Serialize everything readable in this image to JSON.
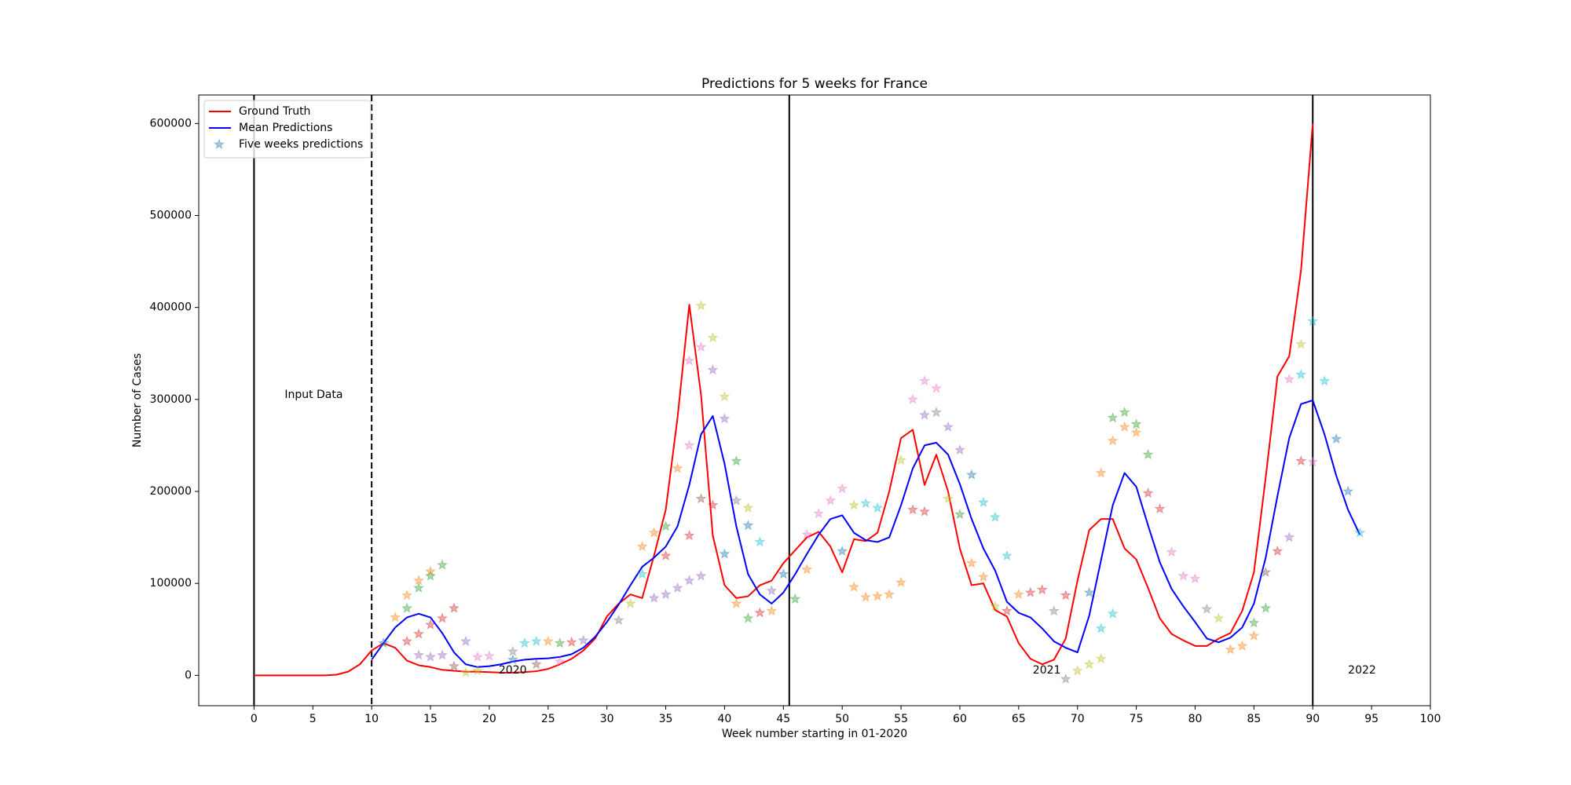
{
  "chart_data": {
    "type": "line",
    "title": "Predictions for 5 weeks for France",
    "xlabel": "Week number starting in 01-2020",
    "ylabel": "Number of Cases",
    "xlim": [
      -4.7,
      100
    ],
    "xticks": [
      0,
      5,
      10,
      15,
      20,
      25,
      30,
      35,
      40,
      45,
      50,
      55,
      60,
      65,
      70,
      75,
      80,
      85,
      90,
      95,
      100
    ],
    "ylim": [
      -33000,
      631000
    ],
    "yticks": [
      0,
      100000,
      200000,
      300000,
      400000,
      500000,
      600000
    ],
    "legend": "upper left",
    "series": [
      {
        "name": "Ground Truth",
        "color": "#ff0000",
        "x": [
          0,
          1,
          2,
          3,
          4,
          5,
          6,
          7,
          8,
          9,
          10,
          11,
          12,
          13,
          14,
          15,
          16,
          17,
          18,
          19,
          20,
          21,
          22,
          23,
          24,
          25,
          26,
          27,
          28,
          29,
          30,
          31,
          32,
          33,
          34,
          35,
          36,
          37,
          38,
          39,
          40,
          41,
          42,
          43,
          44,
          45,
          46,
          47,
          48,
          49,
          50,
          51,
          52,
          53,
          54,
          55,
          56,
          57,
          58,
          59,
          60,
          61,
          62,
          63,
          64,
          65,
          66,
          67,
          68,
          69,
          70,
          71,
          72,
          73,
          74,
          75,
          76,
          77,
          78,
          79,
          80,
          81,
          82,
          83,
          84,
          85,
          86,
          87,
          88,
          89,
          90
        ],
        "values": [
          0,
          0,
          0,
          0,
          0,
          0,
          0,
          700,
          4000,
          12000,
          27000,
          35000,
          30000,
          16000,
          11000,
          9000,
          6000,
          5000,
          4000,
          4000,
          3500,
          3000,
          3000,
          3500,
          4500,
          7000,
          12000,
          18000,
          27000,
          40000,
          64000,
          78000,
          88000,
          84000,
          130000,
          180000,
          280000,
          403000,
          305000,
          152000,
          98000,
          84000,
          86000,
          98000,
          103000,
          122000,
          136000,
          150000,
          156000,
          140000,
          112000,
          148000,
          146000,
          155000,
          200000,
          258000,
          267000,
          207000,
          240000,
          200000,
          138000,
          98000,
          100000,
          71000,
          64000,
          35000,
          18000,
          12000,
          17000,
          40000,
          103000,
          158000,
          170000,
          170000,
          138000,
          126000,
          95000,
          62000,
          45000,
          38000,
          32000,
          32000,
          40000,
          46000,
          70000,
          112000,
          215000,
          325000,
          347000,
          440000,
          600000
        ]
      },
      {
        "name": "Mean Predictions",
        "color": "#0000ff",
        "x": [
          10,
          11,
          12,
          13,
          14,
          15,
          16,
          17,
          18,
          19,
          20,
          21,
          22,
          23,
          24,
          25,
          26,
          27,
          28,
          29,
          30,
          31,
          32,
          33,
          34,
          35,
          36,
          37,
          38,
          39,
          40,
          41,
          42,
          43,
          44,
          45,
          46,
          47,
          48,
          49,
          50,
          51,
          52,
          53,
          54,
          55,
          56,
          57,
          58,
          59,
          60,
          61,
          62,
          63,
          64,
          65,
          66,
          67,
          68,
          69,
          70,
          71,
          72,
          73,
          74,
          75,
          76,
          77,
          78,
          79,
          80,
          81,
          82,
          83,
          84,
          85,
          86,
          87,
          88,
          89,
          90,
          91,
          92,
          93,
          94
        ],
        "values": [
          17000,
          35000,
          52000,
          63000,
          67000,
          63000,
          46000,
          25000,
          12000,
          9000,
          10000,
          12000,
          15000,
          17000,
          18000,
          18500,
          20000,
          23000,
          30000,
          42000,
          58000,
          77000,
          98000,
          118000,
          128000,
          140000,
          162000,
          207000,
          262000,
          282000,
          230000,
          162000,
          110000,
          88000,
          78000,
          90000,
          110000,
          132000,
          153000,
          170000,
          174000,
          155000,
          147000,
          145000,
          150000,
          185000,
          225000,
          250000,
          253000,
          240000,
          208000,
          170000,
          138000,
          114000,
          80000,
          68000,
          63000,
          51000,
          37000,
          30000,
          25000,
          65000,
          125000,
          185000,
          220000,
          205000,
          163000,
          123000,
          94000,
          75000,
          58000,
          40000,
          36000,
          41000,
          52000,
          78000,
          128000,
          195000,
          258000,
          295000,
          299000,
          262000,
          217000,
          180000,
          153000
        ]
      },
      {
        "name": "Five weeks predictions",
        "type": "scatter",
        "marker": "star",
        "color": "#1f77b4",
        "alpha": 0.4,
        "x": [
          11,
          12,
          13,
          13,
          14,
          14,
          15,
          15,
          16,
          13,
          14,
          15,
          16,
          17,
          14,
          15,
          16,
          18,
          17,
          19,
          20,
          18,
          19,
          22,
          23,
          24,
          25,
          26,
          27,
          28,
          22,
          24,
          26,
          31,
          32,
          33,
          33,
          34,
          35,
          35,
          34,
          35,
          36,
          36,
          37,
          37,
          38,
          38,
          39,
          39,
          37,
          37,
          38,
          38,
          39,
          40,
          40,
          40,
          41,
          41,
          42,
          42,
          43,
          41,
          42,
          43,
          44,
          44,
          45,
          46,
          47,
          47,
          48,
          49,
          50,
          50,
          51,
          51,
          52,
          52,
          53,
          53,
          54,
          55,
          55,
          56,
          57,
          56,
          57,
          58,
          57,
          58,
          59,
          60,
          59,
          60,
          61,
          62,
          63,
          64,
          61,
          62,
          63,
          64,
          65,
          66,
          67,
          68,
          69,
          69,
          70,
          71,
          72,
          71,
          72,
          73,
          72,
          73,
          73,
          74,
          74,
          75,
          75,
          76,
          76,
          77,
          78,
          79,
          80,
          81,
          82,
          83,
          84,
          85,
          85,
          86,
          86,
          87,
          88,
          88,
          89,
          89,
          90,
          91,
          92,
          93,
          94,
          89,
          90
        ],
        "values": [
          35000,
          63000,
          87000,
          73000,
          103000,
          95000,
          113000,
          108000,
          120000,
          37000,
          45000,
          55000,
          62000,
          73000,
          22000,
          20000,
          22000,
          37000,
          10000,
          20000,
          21000,
          3000,
          5000,
          26000,
          35000,
          37000,
          37000,
          35000,
          36000,
          38000,
          17000,
          12000,
          15000,
          60000,
          78000,
          110000,
          140000,
          155000,
          162000,
          130000,
          84000,
          88000,
          225000,
          95000,
          250000,
          342000,
          402000,
          357000,
          367000,
          332000,
          152000,
          103000,
          108000,
          192000,
          185000,
          303000,
          279000,
          132000,
          233000,
          190000,
          163000,
          182000,
          145000,
          78000,
          62000,
          68000,
          70000,
          92000,
          110000,
          83000,
          115000,
          153000,
          176000,
          190000,
          203000,
          135000,
          185000,
          96000,
          187000,
          85000,
          182000,
          86000,
          88000,
          101000,
          234000,
          180000,
          178000,
          300000,
          320000,
          312000,
          283000,
          286000,
          270000,
          245000,
          192000,
          175000,
          218000,
          188000,
          172000,
          130000,
          122000,
          107000,
          75000,
          70000,
          88000,
          90000,
          93000,
          70000,
          87000,
          -4000,
          5000,
          12000,
          18000,
          90000,
          51000,
          67000,
          220000,
          255000,
          280000,
          286000,
          270000,
          273000,
          264000,
          240000,
          198000,
          181000,
          134000,
          108000,
          105000,
          72000,
          62000,
          28000,
          32000,
          43000,
          57000,
          73000,
          112000,
          135000,
          150000,
          322000,
          327000,
          360000,
          385000,
          320000,
          257000,
          200000,
          155000,
          233000,
          232000
        ],
        "colors": [
          "#1f77b4",
          "#ff7f0e",
          "#ff7f0e",
          "#2ca02c",
          "#ff7f0e",
          "#2ca02c",
          "#ff7f0e",
          "#2ca02c",
          "#2ca02c",
          "#d62728",
          "#d62728",
          "#d62728",
          "#d62728",
          "#d62728",
          "#9467bd",
          "#9467bd",
          "#9467bd",
          "#9467bd",
          "#8c564b",
          "#e377c2",
          "#e377c2",
          "#bcbd22",
          "#bcbd22",
          "#7f7f7f",
          "#17becf",
          "#17becf",
          "#ff7f0e",
          "#2ca02c",
          "#d62728",
          "#9467bd",
          "#1f77b4",
          "#8c564b",
          "#e377c2",
          "#7f7f7f",
          "#bcbd22",
          "#17becf",
          "#ff7f0e",
          "#ff7f0e",
          "#2ca02c",
          "#d62728",
          "#9467bd",
          "#9467bd",
          "#ff7f0e",
          "#9467bd",
          "#e377c2",
          "#e377c2",
          "#bcbd22",
          "#e377c2",
          "#bcbd22",
          "#9467bd",
          "#d62728",
          "#9467bd",
          "#9467bd",
          "#8c564b",
          "#d62728",
          "#bcbd22",
          "#9467bd",
          "#1f77b4",
          "#2ca02c",
          "#7f7f7f",
          "#1f77b4",
          "#bcbd22",
          "#17becf",
          "#ff7f0e",
          "#2ca02c",
          "#d62728",
          "#ff7f0e",
          "#9467bd",
          "#1f77b4",
          "#2ca02c",
          "#ff7f0e",
          "#e377c2",
          "#e377c2",
          "#e377c2",
          "#e377c2",
          "#1f77b4",
          "#bcbd22",
          "#ff7f0e",
          "#17becf",
          "#ff7f0e",
          "#17becf",
          "#ff7f0e",
          "#ff7f0e",
          "#ff7f0e",
          "#bcbd22",
          "#d62728",
          "#d62728",
          "#e377c2",
          "#e377c2",
          "#e377c2",
          "#9467bd",
          "#7f7f7f",
          "#9467bd",
          "#9467bd",
          "#bcbd22",
          "#2ca02c",
          "#1f77b4",
          "#17becf",
          "#17becf",
          "#17becf",
          "#ff7f0e",
          "#ff7f0e",
          "#bcbd22",
          "#d62728",
          "#ff7f0e",
          "#d62728",
          "#d62728",
          "#7f7f7f",
          "#d62728",
          "#7f7f7f",
          "#bcbd22",
          "#bcbd22",
          "#bcbd22",
          "#1f77b4",
          "#17becf",
          "#17becf",
          "#ff7f0e",
          "#ff7f0e",
          "#2ca02c",
          "#2ca02c",
          "#ff7f0e",
          "#2ca02c",
          "#ff7f0e",
          "#2ca02c",
          "#d62728",
          "#d62728",
          "#e377c2",
          "#e377c2",
          "#e377c2",
          "#7f7f7f",
          "#bcbd22",
          "#ff7f0e",
          "#ff7f0e",
          "#ff7f0e",
          "#2ca02c",
          "#2ca02c",
          "#8c564b",
          "#d62728",
          "#9467bd",
          "#e377c2",
          "#17becf",
          "#bcbd22",
          "#17becf",
          "#17becf",
          "#1f77b4",
          "#1f77b4",
          "#17becf",
          "#d62728",
          "#e377c2"
        ]
      }
    ],
    "vlines": [
      {
        "x": 0,
        "style": "solid"
      },
      {
        "x": 10,
        "style": "dashed"
      },
      {
        "x": 45.5,
        "style": "solid"
      },
      {
        "x": 90,
        "style": "solid"
      }
    ],
    "annotations": [
      {
        "text": "Input Data",
        "x": 2.6,
        "y": 305000
      },
      {
        "text": "2020",
        "x": 20.8,
        "y": 5500
      },
      {
        "text": "2021",
        "x": 66.2,
        "y": 5500
      },
      {
        "text": "2022",
        "x": 93.0,
        "y": 5500
      }
    ]
  }
}
